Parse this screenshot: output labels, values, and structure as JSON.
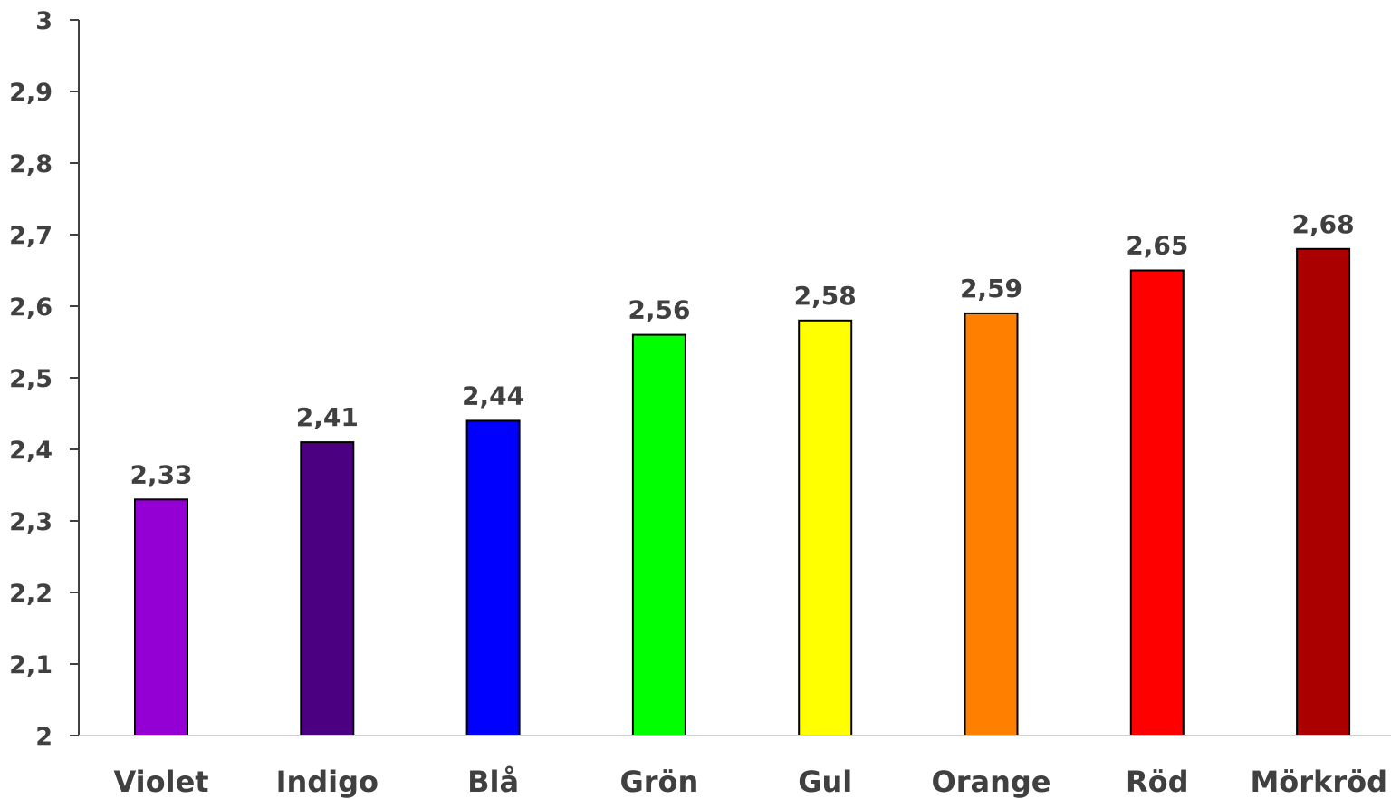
{
  "chart_data": {
    "type": "bar",
    "title": "",
    "xlabel": "",
    "ylabel": "",
    "categories": [
      "Violet",
      "Indigo",
      "Blå",
      "Grön",
      "Gul",
      "Orange",
      "Röd",
      "Mörkröd"
    ],
    "values": [
      2.33,
      2.41,
      2.44,
      2.56,
      2.58,
      2.59,
      2.65,
      2.68
    ],
    "data_labels": [
      "2,33",
      "2,41",
      "2,44",
      "2,56",
      "2,58",
      "2,59",
      "2,65",
      "2,68"
    ],
    "bar_colors": [
      "#9400D3",
      "#4B0082",
      "#0000FF",
      "#00FF00",
      "#FFFF00",
      "#FF7F00",
      "#FF0000",
      "#AA0000"
    ],
    "bar_border_color": "#000000",
    "ylim": [
      2,
      3
    ],
    "yticks": [
      2,
      2.1,
      2.2,
      2.3,
      2.4,
      2.5,
      2.6,
      2.7,
      2.8,
      2.9,
      3
    ],
    "ytick_labels": [
      "2",
      "2,1",
      "2,2",
      "2,3",
      "2,4",
      "2,5",
      "2,6",
      "2,7",
      "2,8",
      "2,9",
      "3"
    ],
    "grid": false,
    "legend": "none"
  }
}
